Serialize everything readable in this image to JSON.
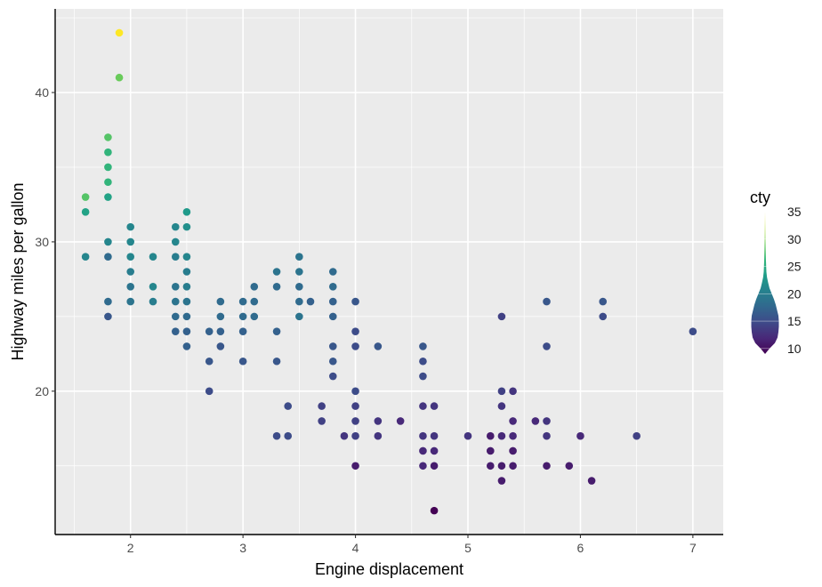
{
  "chart_data": {
    "type": "scatter",
    "title": "",
    "xlabel": "Engine displacement",
    "ylabel": "Highway miles per gallon",
    "xlim": [
      1.33,
      7.27
    ],
    "ylim": [
      10.4,
      45.6
    ],
    "x_ticks": [
      2,
      3,
      4,
      5,
      6,
      7
    ],
    "y_ticks": [
      20,
      30,
      40
    ],
    "grid": true,
    "background": "#EBEBEB",
    "legend": {
      "title": "cty",
      "position": "right",
      "ticks": [
        10,
        15,
        20,
        25,
        30,
        35
      ],
      "range": [
        9,
        35
      ],
      "palette": "viridis"
    },
    "series": [
      {
        "points": [
          {
            "x": 1.6,
            "y": 33,
            "cty": 28
          },
          {
            "x": 1.6,
            "y": 32,
            "cty": 24
          },
          {
            "x": 1.6,
            "y": 29,
            "cty": 21
          },
          {
            "x": 1.8,
            "y": 37,
            "cty": 28
          },
          {
            "x": 1.8,
            "y": 36,
            "cty": 26
          },
          {
            "x": 1.8,
            "y": 35,
            "cty": 26
          },
          {
            "x": 1.8,
            "y": 34,
            "cty": 26
          },
          {
            "x": 1.8,
            "y": 33,
            "cty": 24
          },
          {
            "x": 1.8,
            "y": 30,
            "cty": 21
          },
          {
            "x": 1.8,
            "y": 29,
            "cty": 18
          },
          {
            "x": 1.8,
            "y": 26,
            "cty": 18
          },
          {
            "x": 1.8,
            "y": 25,
            "cty": 16
          },
          {
            "x": 1.9,
            "y": 44,
            "cty": 35
          },
          {
            "x": 1.9,
            "y": 41,
            "cty": 29
          },
          {
            "x": 2.0,
            "y": 31,
            "cty": 21
          },
          {
            "x": 2.0,
            "y": 30,
            "cty": 21
          },
          {
            "x": 2.0,
            "y": 29,
            "cty": 21
          },
          {
            "x": 2.0,
            "y": 28,
            "cty": 20
          },
          {
            "x": 2.0,
            "y": 27,
            "cty": 19
          },
          {
            "x": 2.0,
            "y": 26,
            "cty": 19
          },
          {
            "x": 2.2,
            "y": 29,
            "cty": 21
          },
          {
            "x": 2.2,
            "y": 27,
            "cty": 21
          },
          {
            "x": 2.2,
            "y": 26,
            "cty": 20
          },
          {
            "x": 2.4,
            "y": 31,
            "cty": 21
          },
          {
            "x": 2.4,
            "y": 30,
            "cty": 21
          },
          {
            "x": 2.4,
            "y": 29,
            "cty": 20
          },
          {
            "x": 2.4,
            "y": 27,
            "cty": 19
          },
          {
            "x": 2.4,
            "y": 26,
            "cty": 19
          },
          {
            "x": 2.4,
            "y": 25,
            "cty": 18
          },
          {
            "x": 2.4,
            "y": 24,
            "cty": 17
          },
          {
            "x": 2.5,
            "y": 32,
            "cty": 23
          },
          {
            "x": 2.5,
            "y": 31,
            "cty": 22
          },
          {
            "x": 2.5,
            "y": 29,
            "cty": 21
          },
          {
            "x": 2.5,
            "y": 28,
            "cty": 20
          },
          {
            "x": 2.5,
            "y": 27,
            "cty": 20
          },
          {
            "x": 2.5,
            "y": 26,
            "cty": 19
          },
          {
            "x": 2.5,
            "y": 25,
            "cty": 18
          },
          {
            "x": 2.5,
            "y": 24,
            "cty": 17
          },
          {
            "x": 2.5,
            "y": 23,
            "cty": 17
          },
          {
            "x": 2.7,
            "y": 24,
            "cty": 17
          },
          {
            "x": 2.7,
            "y": 22,
            "cty": 16
          },
          {
            "x": 2.7,
            "y": 20,
            "cty": 15
          },
          {
            "x": 2.8,
            "y": 26,
            "cty": 18
          },
          {
            "x": 2.8,
            "y": 25,
            "cty": 18
          },
          {
            "x": 2.8,
            "y": 24,
            "cty": 17
          },
          {
            "x": 2.8,
            "y": 23,
            "cty": 16
          },
          {
            "x": 3.0,
            "y": 26,
            "cty": 18
          },
          {
            "x": 3.0,
            "y": 25,
            "cty": 18
          },
          {
            "x": 3.0,
            "y": 24,
            "cty": 17
          },
          {
            "x": 3.0,
            "y": 22,
            "cty": 16
          },
          {
            "x": 3.1,
            "y": 27,
            "cty": 18
          },
          {
            "x": 3.1,
            "y": 26,
            "cty": 18
          },
          {
            "x": 3.1,
            "y": 25,
            "cty": 18
          },
          {
            "x": 3.3,
            "y": 28,
            "cty": 19
          },
          {
            "x": 3.3,
            "y": 27,
            "cty": 18
          },
          {
            "x": 3.3,
            "y": 24,
            "cty": 17
          },
          {
            "x": 3.3,
            "y": 22,
            "cty": 16
          },
          {
            "x": 3.3,
            "y": 17,
            "cty": 15
          },
          {
            "x": 3.4,
            "y": 19,
            "cty": 15
          },
          {
            "x": 3.4,
            "y": 17,
            "cty": 15
          },
          {
            "x": 3.5,
            "y": 29,
            "cty": 19
          },
          {
            "x": 3.5,
            "y": 28,
            "cty": 19
          },
          {
            "x": 3.5,
            "y": 27,
            "cty": 18
          },
          {
            "x": 3.5,
            "y": 26,
            "cty": 18
          },
          {
            "x": 3.5,
            "y": 25,
            "cty": 19
          },
          {
            "x": 3.6,
            "y": 26,
            "cty": 17
          },
          {
            "x": 3.7,
            "y": 19,
            "cty": 14
          },
          {
            "x": 3.7,
            "y": 18,
            "cty": 14
          },
          {
            "x": 3.8,
            "y": 28,
            "cty": 18
          },
          {
            "x": 3.8,
            "y": 27,
            "cty": 18
          },
          {
            "x": 3.8,
            "y": 26,
            "cty": 17
          },
          {
            "x": 3.8,
            "y": 25,
            "cty": 17
          },
          {
            "x": 3.8,
            "y": 23,
            "cty": 16
          },
          {
            "x": 3.8,
            "y": 22,
            "cty": 16
          },
          {
            "x": 3.8,
            "y": 21,
            "cty": 15
          },
          {
            "x": 3.9,
            "y": 17,
            "cty": 13
          },
          {
            "x": 4.0,
            "y": 26,
            "cty": 16
          },
          {
            "x": 4.0,
            "y": 24,
            "cty": 15
          },
          {
            "x": 4.0,
            "y": 23,
            "cty": 15
          },
          {
            "x": 4.0,
            "y": 20,
            "cty": 15
          },
          {
            "x": 4.0,
            "y": 19,
            "cty": 14
          },
          {
            "x": 4.0,
            "y": 18,
            "cty": 14
          },
          {
            "x": 4.0,
            "y": 17,
            "cty": 14
          },
          {
            "x": 4.0,
            "y": 15,
            "cty": 11
          },
          {
            "x": 4.2,
            "y": 23,
            "cty": 16
          },
          {
            "x": 4.2,
            "y": 18,
            "cty": 13
          },
          {
            "x": 4.2,
            "y": 17,
            "cty": 13
          },
          {
            "x": 4.4,
            "y": 18,
            "cty": 12
          },
          {
            "x": 4.6,
            "y": 23,
            "cty": 16
          },
          {
            "x": 4.6,
            "y": 22,
            "cty": 15
          },
          {
            "x": 4.6,
            "y": 21,
            "cty": 15
          },
          {
            "x": 4.6,
            "y": 19,
            "cty": 13
          },
          {
            "x": 4.6,
            "y": 17,
            "cty": 13
          },
          {
            "x": 4.6,
            "y": 16,
            "cty": 12
          },
          {
            "x": 4.6,
            "y": 15,
            "cty": 12
          },
          {
            "x": 4.7,
            "y": 19,
            "cty": 13
          },
          {
            "x": 4.7,
            "y": 17,
            "cty": 13
          },
          {
            "x": 4.7,
            "y": 16,
            "cty": 12
          },
          {
            "x": 4.7,
            "y": 15,
            "cty": 11
          },
          {
            "x": 4.7,
            "y": 12,
            "cty": 9
          },
          {
            "x": 5.0,
            "y": 17,
            "cty": 13
          },
          {
            "x": 5.2,
            "y": 17,
            "cty": 11
          },
          {
            "x": 5.2,
            "y": 16,
            "cty": 11
          },
          {
            "x": 5.2,
            "y": 15,
            "cty": 11
          },
          {
            "x": 5.3,
            "y": 25,
            "cty": 14
          },
          {
            "x": 5.3,
            "y": 20,
            "cty": 14
          },
          {
            "x": 5.3,
            "y": 19,
            "cty": 13
          },
          {
            "x": 5.3,
            "y": 17,
            "cty": 12
          },
          {
            "x": 5.3,
            "y": 15,
            "cty": 11
          },
          {
            "x": 5.3,
            "y": 14,
            "cty": 11
          },
          {
            "x": 5.4,
            "y": 20,
            "cty": 13
          },
          {
            "x": 5.4,
            "y": 18,
            "cty": 12
          },
          {
            "x": 5.4,
            "y": 17,
            "cty": 12
          },
          {
            "x": 5.4,
            "y": 16,
            "cty": 11
          },
          {
            "x": 5.4,
            "y": 15,
            "cty": 11
          },
          {
            "x": 5.6,
            "y": 18,
            "cty": 12
          },
          {
            "x": 5.7,
            "y": 26,
            "cty": 16
          },
          {
            "x": 5.7,
            "y": 23,
            "cty": 15
          },
          {
            "x": 5.7,
            "y": 18,
            "cty": 13
          },
          {
            "x": 5.7,
            "y": 17,
            "cty": 13
          },
          {
            "x": 5.7,
            "y": 15,
            "cty": 11
          },
          {
            "x": 5.9,
            "y": 15,
            "cty": 11
          },
          {
            "x": 6.0,
            "y": 17,
            "cty": 12
          },
          {
            "x": 6.1,
            "y": 14,
            "cty": 11
          },
          {
            "x": 6.2,
            "y": 26,
            "cty": 16
          },
          {
            "x": 6.2,
            "y": 25,
            "cty": 15
          },
          {
            "x": 6.5,
            "y": 17,
            "cty": 14
          },
          {
            "x": 7.0,
            "y": 24,
            "cty": 15
          }
        ]
      }
    ]
  }
}
